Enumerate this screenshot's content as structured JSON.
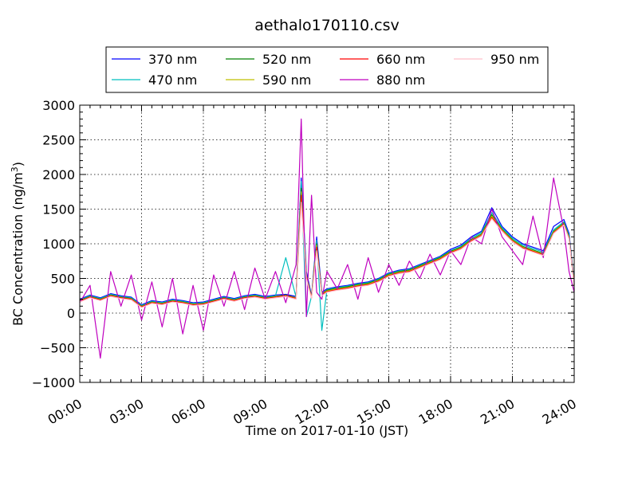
{
  "chart_data": {
    "type": "line",
    "title": "aethalo170110.csv",
    "xlabel": "Time on 2017-01-10 (JST)",
    "ylabel_main": "BC Concentration (ng/m",
    "ylabel_sup": "3",
    "ylabel_close": ")",
    "xlim": [
      0,
      24
    ],
    "ylim": [
      -1000,
      3000
    ],
    "grid": true,
    "legend_placement": "top-center",
    "x_ticks": [
      {
        "value": 0,
        "label": "00:00"
      },
      {
        "value": 3,
        "label": "03:00"
      },
      {
        "value": 6,
        "label": "06:00"
      },
      {
        "value": 9,
        "label": "09:00"
      },
      {
        "value": 12,
        "label": "12:00"
      },
      {
        "value": 15,
        "label": "15:00"
      },
      {
        "value": 18,
        "label": "18:00"
      },
      {
        "value": 21,
        "label": "21:00"
      },
      {
        "value": 24,
        "label": "24:00"
      }
    ],
    "y_ticks": [
      {
        "value": -1000,
        "label": "−1000"
      },
      {
        "value": -500,
        "label": "−500"
      },
      {
        "value": 0,
        "label": "0"
      },
      {
        "value": 500,
        "label": "500"
      },
      {
        "value": 1000,
        "label": "1000"
      },
      {
        "value": 1500,
        "label": "1500"
      },
      {
        "value": 2000,
        "label": "2000"
      },
      {
        "value": 2500,
        "label": "2500"
      },
      {
        "value": 3000,
        "label": "3000"
      }
    ],
    "x": [
      0,
      0.5,
      1,
      1.5,
      2,
      2.5,
      3,
      3.5,
      4,
      4.5,
      5,
      5.5,
      6,
      6.5,
      7,
      7.5,
      8,
      8.5,
      9,
      9.5,
      10,
      10.5,
      10.75,
      11,
      11.25,
      11.5,
      11.75,
      12,
      12.5,
      13,
      13.5,
      14,
      14.5,
      15,
      15.5,
      16,
      16.5,
      17,
      17.5,
      18,
      18.5,
      19,
      19.5,
      20,
      20.5,
      21,
      21.5,
      22,
      22.5,
      23,
      23.5,
      23.75,
      24
    ],
    "series": [
      {
        "name": "370 nm",
        "color": "#0000ff",
        "values": [
          200,
          260,
          220,
          280,
          250,
          230,
          120,
          180,
          160,
          200,
          180,
          150,
          160,
          200,
          240,
          210,
          250,
          270,
          240,
          260,
          270,
          240,
          1950,
          600,
          250,
          1100,
          300,
          350,
          380,
          400,
          430,
          450,
          500,
          580,
          620,
          640,
          700,
          760,
          820,
          920,
          980,
          1100,
          1180,
          1520,
          1250,
          1100,
          1000,
          950,
          900,
          1250,
          1350,
          1150,
          450
        ]
      },
      {
        "name": "470 nm",
        "color": "#00bfbf",
        "values": [
          190,
          250,
          210,
          270,
          240,
          220,
          110,
          170,
          150,
          190,
          170,
          140,
          150,
          190,
          230,
          200,
          240,
          260,
          230,
          250,
          800,
          230,
          1900,
          -50,
          240,
          1050,
          -250,
          340,
          370,
          390,
          420,
          440,
          490,
          570,
          610,
          630,
          690,
          750,
          810,
          900,
          960,
          1080,
          1160,
          1450,
          1230,
          1080,
          980,
          930,
          880,
          1200,
          1320,
          1120,
          430
        ]
      },
      {
        "name": "520 nm",
        "color": "#008000",
        "values": [
          180,
          240,
          200,
          260,
          230,
          210,
          100,
          160,
          140,
          180,
          160,
          130,
          140,
          180,
          220,
          190,
          230,
          250,
          220,
          240,
          260,
          220,
          1800,
          550,
          230,
          1000,
          280,
          330,
          360,
          380,
          410,
          430,
          480,
          560,
          600,
          620,
          680,
          740,
          800,
          890,
          950,
          1060,
          1140,
          1420,
          1210,
          1060,
          960,
          910,
          860,
          1180,
          1300,
          1100,
          420
        ]
      },
      {
        "name": "590 nm",
        "color": "#bfbf00",
        "values": [
          175,
          235,
          195,
          255,
          225,
          205,
          95,
          155,
          135,
          175,
          155,
          125,
          135,
          175,
          215,
          185,
          225,
          245,
          215,
          235,
          255,
          215,
          1750,
          530,
          225,
          980,
          270,
          320,
          350,
          370,
          400,
          420,
          470,
          550,
          590,
          610,
          670,
          730,
          790,
          880,
          940,
          1050,
          1130,
          1400,
          1200,
          1050,
          950,
          900,
          850,
          1170,
          1290,
          1090,
          410
        ]
      },
      {
        "name": "660 nm",
        "color": "#ff0000",
        "values": [
          170,
          230,
          190,
          250,
          220,
          200,
          90,
          150,
          130,
          170,
          150,
          120,
          130,
          170,
          210,
          180,
          220,
          240,
          210,
          230,
          250,
          210,
          1700,
          520,
          220,
          950,
          260,
          310,
          340,
          360,
          390,
          410,
          460,
          540,
          580,
          600,
          660,
          720,
          780,
          870,
          930,
          1040,
          1120,
          1380,
          1190,
          1040,
          940,
          890,
          840,
          1160,
          1280,
          1080,
          400
        ]
      },
      {
        "name": "880 nm",
        "color": "#bf00bf",
        "values": [
          150,
          400,
          -650,
          600,
          100,
          550,
          -100,
          450,
          -200,
          500,
          -300,
          400,
          -250,
          550,
          100,
          600,
          50,
          650,
          200,
          600,
          150,
          700,
          2800,
          -50,
          1700,
          300,
          200,
          600,
          350,
          700,
          200,
          800,
          300,
          700,
          400,
          750,
          500,
          850,
          550,
          900,
          700,
          1100,
          1000,
          1500,
          1100,
          900,
          700,
          1400,
          800,
          1950,
          1200,
          600,
          300
        ]
      },
      {
        "name": "950 nm",
        "color": "#ffc0cb",
        "values": [
          160,
          220,
          180,
          240,
          210,
          190,
          80,
          140,
          120,
          160,
          140,
          110,
          120,
          160,
          200,
          170,
          210,
          230,
          200,
          220,
          240,
          200,
          1600,
          500,
          210,
          900,
          250,
          300,
          330,
          350,
          380,
          400,
          450,
          530,
          570,
          590,
          650,
          710,
          770,
          860,
          920,
          1030,
          1110,
          1360,
          1180,
          1030,
          930,
          880,
          830,
          1150,
          1270,
          1070,
          390
        ]
      }
    ]
  }
}
